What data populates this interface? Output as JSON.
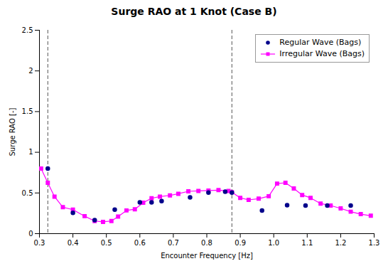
{
  "chart_data": {
    "type": "line",
    "title": "Surge RAO at 1 Knot (Case B)",
    "x_label": "Encounter Frequency [Hz]",
    "y_label": "Surge RAO [-]",
    "xlim": [
      0.3,
      1.3
    ],
    "ylim": [
      0,
      2.5
    ],
    "xticks": [
      0.3,
      0.4,
      0.5,
      0.6,
      0.7,
      0.8,
      0.9,
      {
        "value": 1.0,
        "label": "1.0"
      },
      1.1,
      1.2,
      1.3
    ],
    "yticks": [
      0,
      0.5,
      1,
      1.5,
      2,
      2.5
    ],
    "grid": false,
    "legend": "upper right",
    "vlines": [
      {
        "x": 0.325,
        "color": "#555555",
        "line_style": "dashed"
      },
      {
        "x": 0.875,
        "color": "#555555",
        "line_style": "dashed"
      }
    ],
    "series": [
      {
        "name": "Regular Wave (Bags)",
        "color": "#00008B",
        "marker": "circle",
        "line_style": "none",
        "x": [
          0.325,
          0.4,
          0.465,
          0.525,
          0.6,
          0.635,
          0.665,
          0.75,
          0.805,
          0.855,
          0.875,
          0.965,
          1.04,
          1.095,
          1.16,
          1.23
        ],
        "values": [
          0.8,
          0.255,
          0.165,
          0.295,
          0.385,
          0.385,
          0.4,
          0.445,
          0.505,
          0.515,
          0.505,
          0.285,
          0.35,
          0.345,
          0.345,
          0.345
        ]
      },
      {
        "name": "Irregular Wave (Bags)",
        "color": "#FF00FF",
        "marker": "square",
        "line_style": "solid",
        "x": [
          0.305,
          0.325,
          0.345,
          0.37,
          0.4,
          0.435,
          0.465,
          0.49,
          0.515,
          0.535,
          0.56,
          0.585,
          0.61,
          0.635,
          0.66,
          0.69,
          0.715,
          0.745,
          0.775,
          0.805,
          0.835,
          0.865,
          0.875,
          0.9,
          0.925,
          0.955,
          0.985,
          1.01,
          1.035,
          1.06,
          1.085,
          1.11,
          1.14,
          1.17,
          1.2,
          1.23,
          1.26,
          1.29
        ],
        "values": [
          0.8,
          0.625,
          0.455,
          0.325,
          0.295,
          0.215,
          0.155,
          0.145,
          0.155,
          0.21,
          0.285,
          0.3,
          0.38,
          0.435,
          0.455,
          0.47,
          0.49,
          0.52,
          0.525,
          0.53,
          0.535,
          0.525,
          0.51,
          0.44,
          0.415,
          0.43,
          0.46,
          0.615,
          0.625,
          0.555,
          0.475,
          0.44,
          0.37,
          0.345,
          0.31,
          0.27,
          0.24,
          0.22
        ]
      }
    ]
  }
}
